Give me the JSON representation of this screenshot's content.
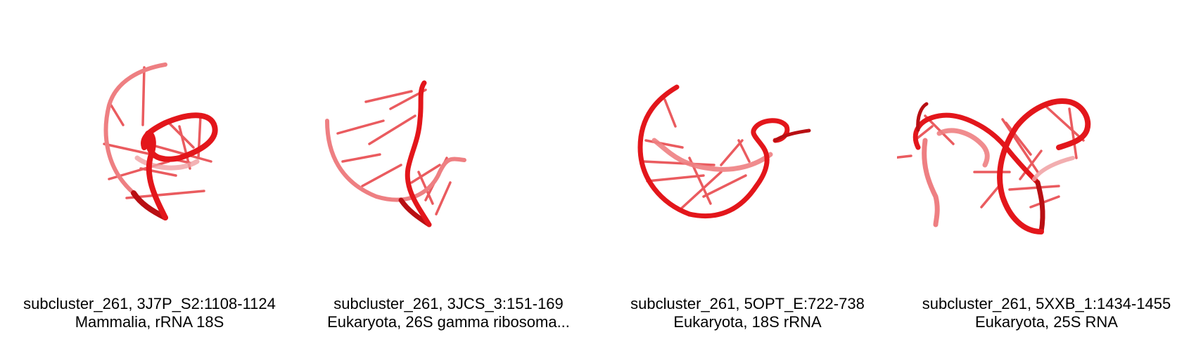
{
  "colors": {
    "backbone": "#e3161b",
    "backbone_dark": "#b80f13",
    "backbone_light": "#ee7f82",
    "bases": "#e84a4e"
  },
  "panels": [
    {
      "title": "subcluster_261, 3J7P_S2:1108-1124",
      "subtitle": "Mammalia, rRNA 18S",
      "icon": "rna-3d-structure"
    },
    {
      "title": "subcluster_261, 3JCS_3:151-169",
      "subtitle": "Eukaryota, 26S gamma ribosoma...",
      "icon": "rna-3d-structure"
    },
    {
      "title": "subcluster_261, 5OPT_E:722-738",
      "subtitle": "Eukaryota, 18S rRNA",
      "icon": "rna-3d-structure"
    },
    {
      "title": "subcluster_261, 5XXB_1:1434-1455",
      "subtitle": "Eukaryota, 25S RNA",
      "icon": "rna-3d-structure"
    }
  ]
}
